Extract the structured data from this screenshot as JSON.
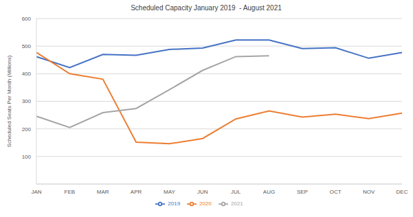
{
  "chart_data": {
    "type": "line",
    "title": "Scheduled Capacity January 2019  - August 2021",
    "y_label": "Scheduled Seats Per Month (Millions)",
    "categories": [
      "JAN",
      "FEB",
      "MAR",
      "APR",
      "MAY",
      "JUN",
      "JUL",
      "AUG",
      "SEP",
      "OCT",
      "NOV",
      "DEC"
    ],
    "series": [
      {
        "name": "2019",
        "color": "#4472c4",
        "values": [
          462,
          422,
          470,
          467,
          488,
          493,
          522,
          522,
          491,
          494,
          456,
          477
        ]
      },
      {
        "name": "2020",
        "color": "#ed7d31",
        "values": [
          477,
          400,
          380,
          152,
          146,
          165,
          236,
          265,
          243,
          253,
          237,
          257
        ]
      },
      {
        "name": "2021",
        "color": "#a5a5a5",
        "values": [
          246,
          205,
          259,
          274,
          342,
          412,
          462,
          465,
          null,
          null,
          null,
          null
        ]
      }
    ],
    "ylim": [
      0,
      600
    ],
    "yticks": [
      100,
      200,
      300,
      400,
      500,
      600
    ],
    "grid": true,
    "legend": "bottom"
  }
}
